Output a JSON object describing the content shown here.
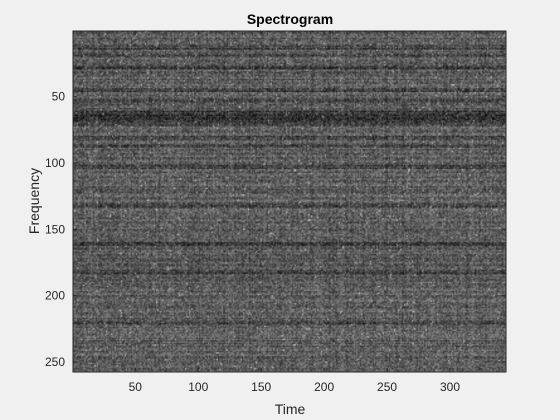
{
  "chart_data": {
    "type": "heatmap",
    "title": "Spectrogram",
    "xlabel": "Time",
    "ylabel": "Frequency",
    "xlim": [
      0.5,
      344.5
    ],
    "ylim": [
      0.5,
      257.5
    ],
    "y_direction": "reverse",
    "x_ticks": [
      50,
      100,
      150,
      200,
      250,
      300
    ],
    "y_ticks": [
      50,
      100,
      150,
      200,
      250
    ],
    "colormap": "gray",
    "grid": false,
    "colors": {
      "figure_background": "#f0f0f0",
      "axes_frame": "#262626",
      "image_mid": "#5a5a5a"
    }
  }
}
